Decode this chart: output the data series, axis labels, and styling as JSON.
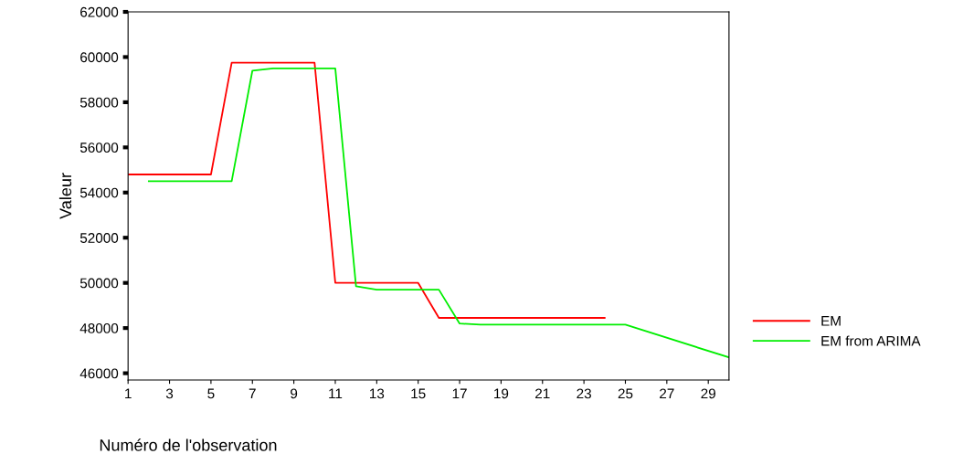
{
  "chart_data": {
    "type": "line",
    "xlabel": "Numéro de l'observation",
    "ylabel": "Valeur",
    "xlim": [
      1,
      30
    ],
    "xticks": [
      1,
      3,
      5,
      7,
      9,
      11,
      13,
      15,
      17,
      19,
      21,
      23,
      25,
      27,
      29
    ],
    "ylim": [
      45700,
      62000
    ],
    "yticks": [
      46000,
      48000,
      50000,
      52000,
      54000,
      56000,
      58000,
      60000,
      62000
    ],
    "grid": false,
    "legend": "right",
    "marker": "none",
    "line_style": "solid",
    "series": [
      {
        "name": "EM",
        "color": "#ff0000",
        "x": [
          1,
          2,
          3,
          4,
          5,
          6,
          7,
          8,
          9,
          10,
          11,
          12,
          13,
          14,
          15,
          16,
          17,
          18,
          19,
          20,
          21,
          22,
          23,
          24
        ],
        "values": [
          54800,
          54800,
          54800,
          54800,
          54800,
          59750,
          59750,
          59750,
          59750,
          59750,
          50000,
          50000,
          50000,
          50000,
          50000,
          48450,
          48450,
          48450,
          48450,
          48450,
          48450,
          48450,
          48450,
          48450
        ]
      },
      {
        "name": "EM from ARIMA",
        "color": "#00ee00",
        "x": [
          2,
          3,
          4,
          5,
          6,
          7,
          8,
          9,
          10,
          11,
          12,
          13,
          14,
          15,
          16,
          17,
          18,
          19,
          20,
          21,
          22,
          23,
          24,
          25,
          30
        ],
        "values": [
          54500,
          54500,
          54500,
          54500,
          54500,
          59400,
          59500,
          59500,
          59500,
          59500,
          49850,
          49700,
          49700,
          49700,
          49700,
          48200,
          48150,
          48150,
          48150,
          48150,
          48150,
          48150,
          48150,
          48150,
          46700
        ]
      }
    ]
  }
}
